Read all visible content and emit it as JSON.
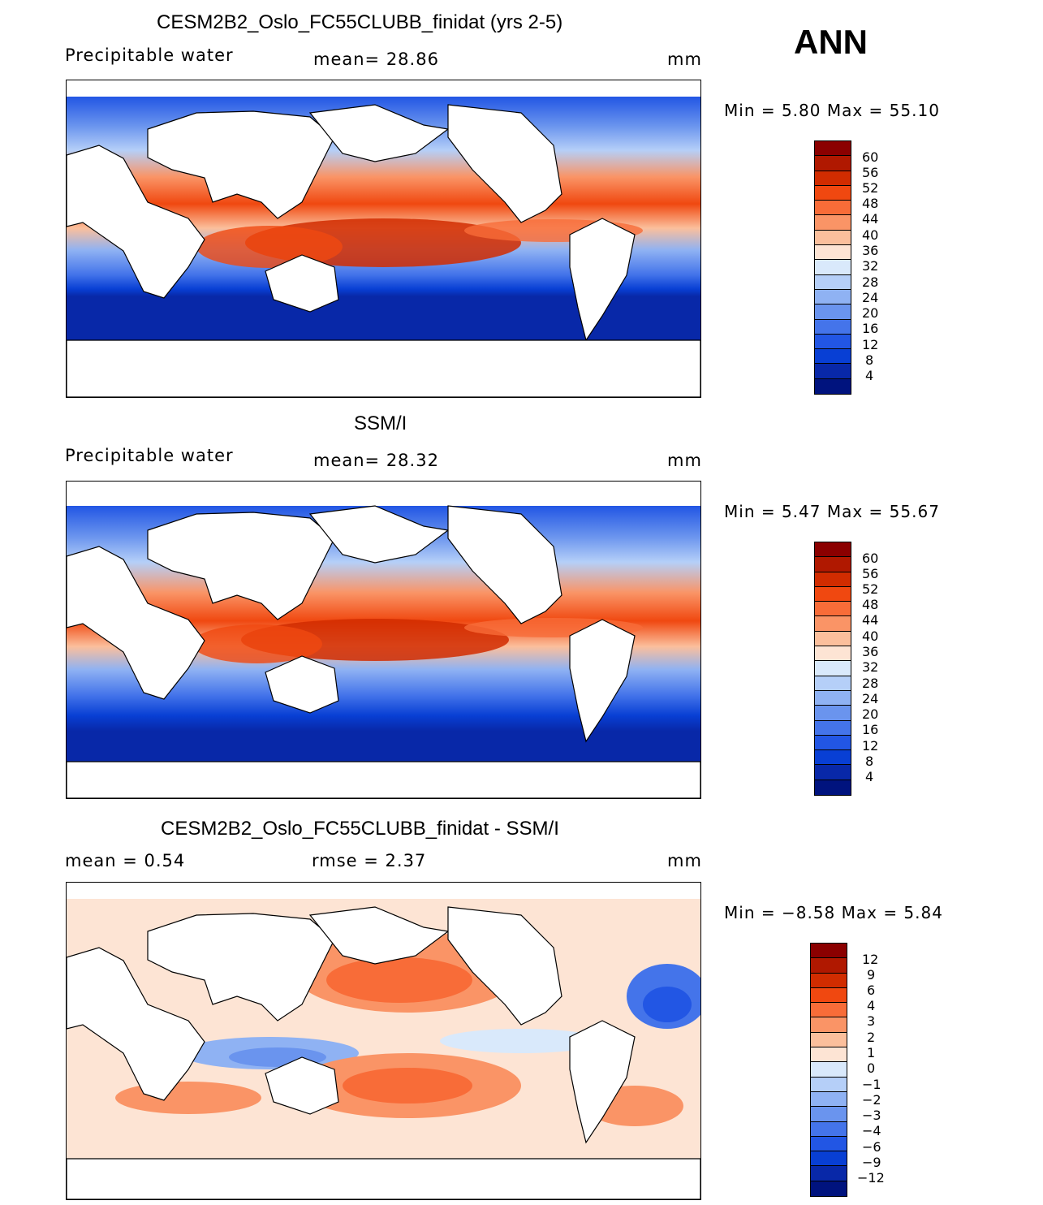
{
  "season": "ANN",
  "panels": [
    {
      "id": "model",
      "title": "CESM2B2_Oslo_FC55CLUBB_finidat (yrs 2-5)",
      "variable": "Precipitable water",
      "stat": "mean=   28.86",
      "units": "mm",
      "minmax": "Min =    5.80  Max =    55.10",
      "levels": [
        "60",
        "56",
        "52",
        "48",
        "44",
        "40",
        "36",
        "32",
        "28",
        "24",
        "20",
        "16",
        "12",
        "8",
        "4"
      ],
      "colors": [
        "#8b0000",
        "#b01800",
        "#d12c00",
        "#f04810",
        "#f86c38",
        "#fa9466",
        "#fbbf9c",
        "#fde4d4",
        "#d9e9fb",
        "#b5cff8",
        "#8fb2f3",
        "#6a94ee",
        "#4474ea",
        "#2256e4",
        "#083fd4",
        "#0828a8",
        "#00137e"
      ]
    },
    {
      "id": "obs",
      "title": "SSM/I",
      "variable": "Precipitable water",
      "stat": "mean=   28.32",
      "units": "mm",
      "minmax": "Min =    5.47  Max =    55.67",
      "levels": [
        "60",
        "56",
        "52",
        "48",
        "44",
        "40",
        "36",
        "32",
        "28",
        "24",
        "20",
        "16",
        "12",
        "8",
        "4"
      ],
      "colors": [
        "#8b0000",
        "#b01800",
        "#d12c00",
        "#f04810",
        "#f86c38",
        "#fa9466",
        "#fbbf9c",
        "#fde4d4",
        "#d9e9fb",
        "#b5cff8",
        "#8fb2f3",
        "#6a94ee",
        "#4474ea",
        "#2256e4",
        "#083fd4",
        "#0828a8",
        "#00137e"
      ]
    },
    {
      "id": "diff",
      "title": "CESM2B2_Oslo_FC55CLUBB_finidat - SSM/I",
      "variable": "mean =    0.54",
      "stat": "rmse =    2.37",
      "units": "mm",
      "minmax": "Min =  −8.58  Max =     5.84",
      "levels": [
        "12",
        "9",
        "6",
        "4",
        "3",
        "2",
        "1",
        "0",
        "−1",
        "−2",
        "−3",
        "−4",
        "−6",
        "−9",
        "−12"
      ],
      "colors": [
        "#8b0000",
        "#b01800",
        "#d12c00",
        "#f04810",
        "#f86c38",
        "#fa9466",
        "#fbbf9c",
        "#fde4d4",
        "#d9e9fb",
        "#b5cff8",
        "#8fb2f3",
        "#6a94ee",
        "#4474ea",
        "#2256e4",
        "#083fd4",
        "#0828a8",
        "#00137e"
      ]
    }
  ]
}
